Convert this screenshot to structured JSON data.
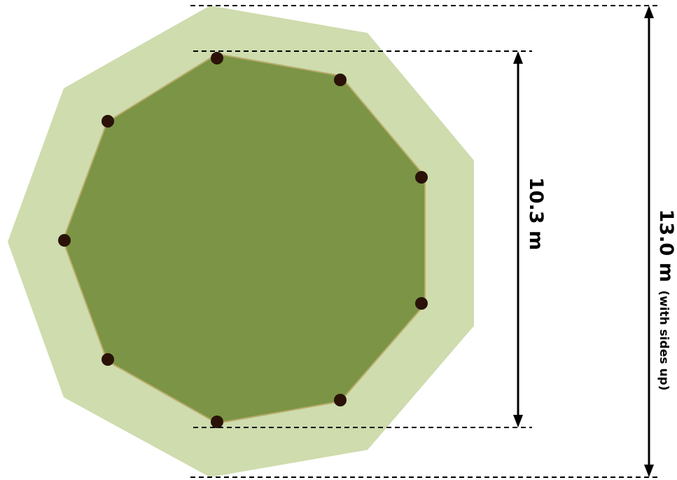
{
  "colors": {
    "outer_fill": "#cedcae",
    "inner_fill": "#7c9445",
    "inner_stroke": "#b8ac6a",
    "peg": "#2a1208",
    "line": "#000000",
    "background": "#ffffff"
  },
  "diagram": {
    "shape": "nonagon",
    "peg_count": 9,
    "dimensions": {
      "inner": {
        "value_label": "10.3 m"
      },
      "outer": {
        "value_label": "13.0 m",
        "note": "(with sides up)"
      }
    }
  }
}
